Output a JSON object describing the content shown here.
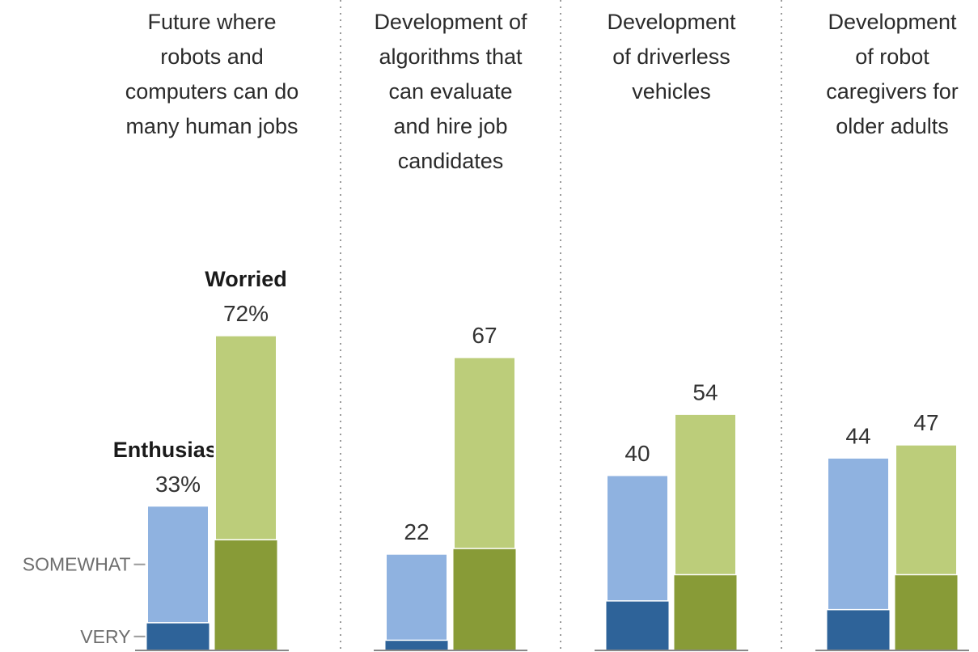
{
  "chart_data": {
    "type": "bar",
    "stacked": true,
    "categories": [
      "Future where robots and computers can do many human jobs",
      "Development of algorithms that can evaluate and hire job candidates",
      "Development of driverless vehicles",
      "Development of robot caregivers for older adults"
    ],
    "title_lines": [
      [
        "Future where",
        "robots and",
        "computers can do",
        "many human jobs"
      ],
      [
        "Development of",
        "algorithms that",
        "can evaluate",
        "and hire job",
        "candidates"
      ],
      [
        "Development",
        "of driverless",
        "vehicles"
      ],
      [
        "Development",
        "of robot",
        "caregivers for",
        "older adults"
      ]
    ],
    "series": [
      {
        "name": "Enthusiastic",
        "total": [
          33,
          22,
          40,
          44
        ],
        "very": [
          6,
          2,
          11,
          9
        ],
        "color_somewhat": "#8fb2e0",
        "color_very": "#2e6399"
      },
      {
        "name": "Worried",
        "total": [
          72,
          67,
          54,
          47
        ],
        "very": [
          25,
          23,
          17,
          17
        ],
        "color_somewhat": "#bccd7a",
        "color_very": "#889b37"
      }
    ],
    "value_labels": [
      [
        "33%",
        "22",
        "40",
        "44"
      ],
      [
        "72%",
        "67",
        "54",
        "47"
      ]
    ],
    "axis_labels": {
      "somewhat": "SOMEWHAT",
      "very": "VERY"
    },
    "ylim": [
      0,
      100
    ],
    "gridlines": false,
    "panel_dividers": "dotted"
  }
}
